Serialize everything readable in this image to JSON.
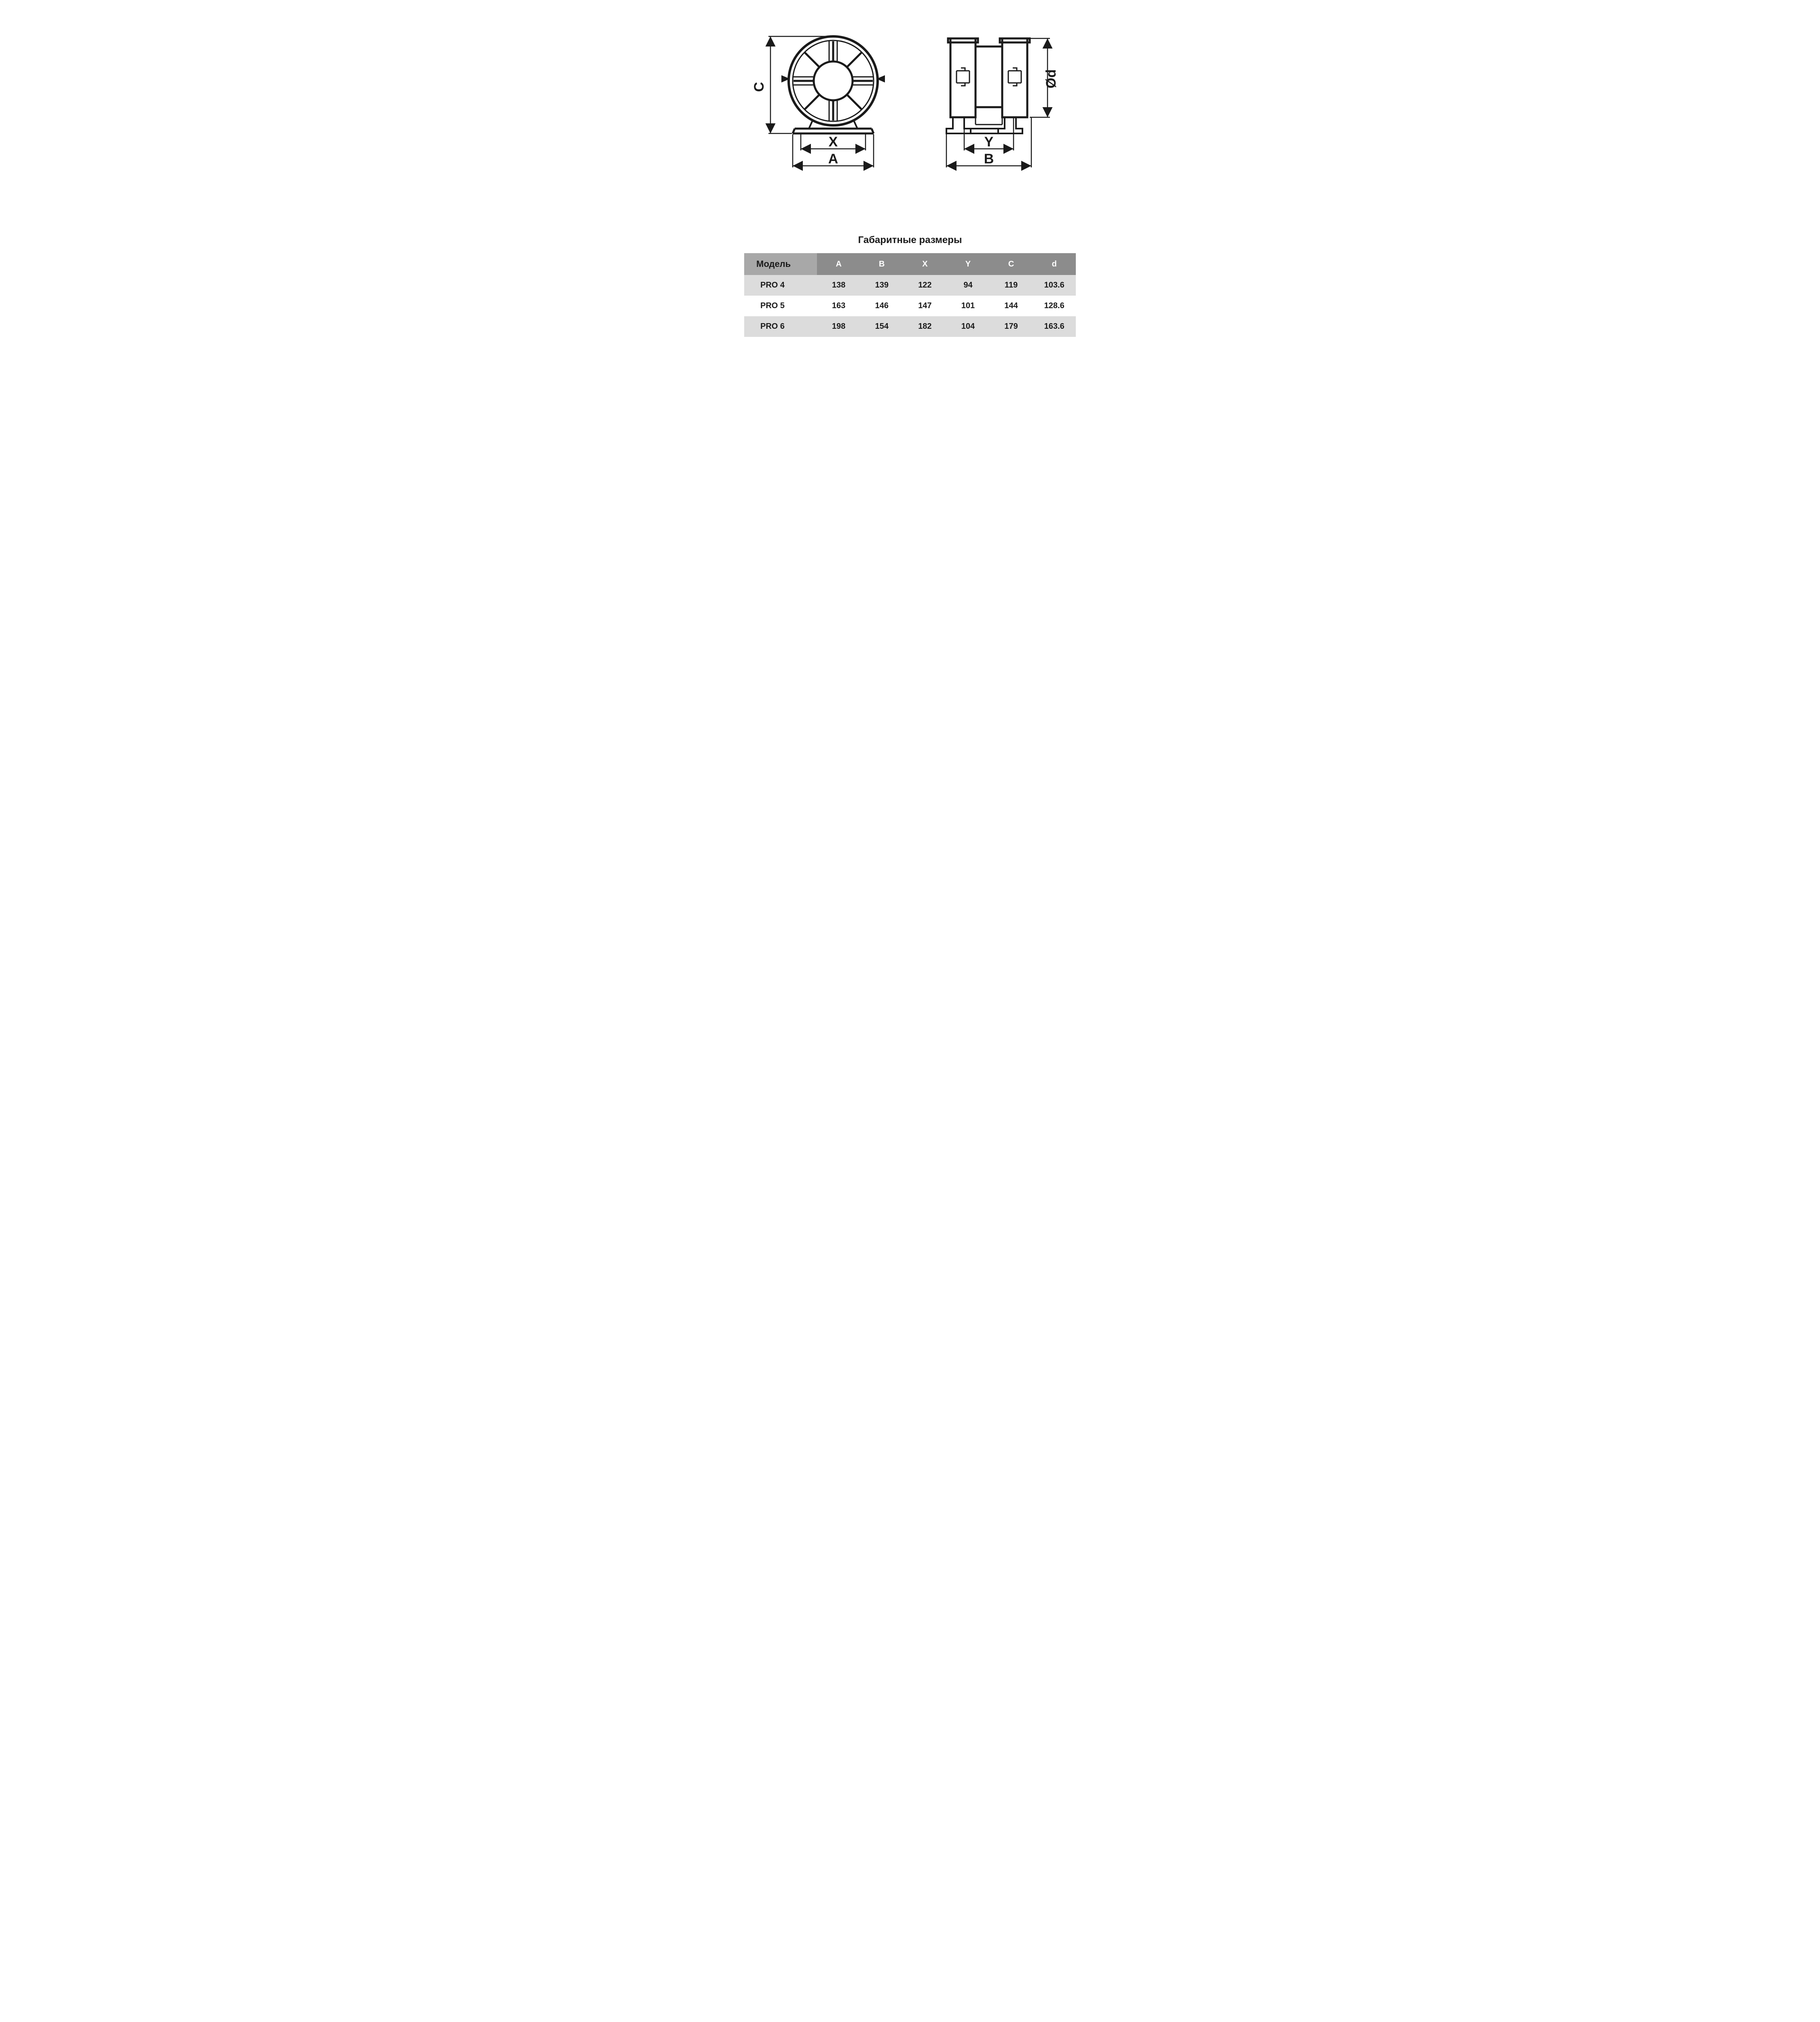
{
  "colors": {
    "stroke": "#1a1a1a",
    "bg": "#ffffff",
    "header_bg": "#8c8c8c",
    "header_model_bg": "#a8a8a8",
    "row_alt_bg": "#dcdcdc",
    "text": "#1a1a1a",
    "header_text": "#ffffff"
  },
  "diagram": {
    "stroke_width_heavy": 4,
    "stroke_width_light": 2,
    "font_family": "Arial",
    "dim_labels": {
      "C": "C",
      "X": "X",
      "A": "A",
      "Y": "Y",
      "B": "B",
      "d": "Ød"
    },
    "label_fontsize": 34
  },
  "table": {
    "title": "Габаритные размеры",
    "title_fontsize": 24,
    "header_fontsize": 20,
    "cell_fontsize": 20,
    "columns": [
      "Модель",
      "A",
      "B",
      "X",
      "Y",
      "C",
      "d"
    ],
    "col_widths_pct": [
      22,
      13,
      13,
      13,
      13,
      13,
      13
    ],
    "rows": [
      [
        "PRO 4",
        "138",
        "139",
        "122",
        "94",
        "119",
        "103.6"
      ],
      [
        "PRO 5",
        "163",
        "146",
        "147",
        "101",
        "144",
        "128.6"
      ],
      [
        "PRO 6",
        "198",
        "154",
        "182",
        "104",
        "179",
        "163.6"
      ]
    ]
  }
}
